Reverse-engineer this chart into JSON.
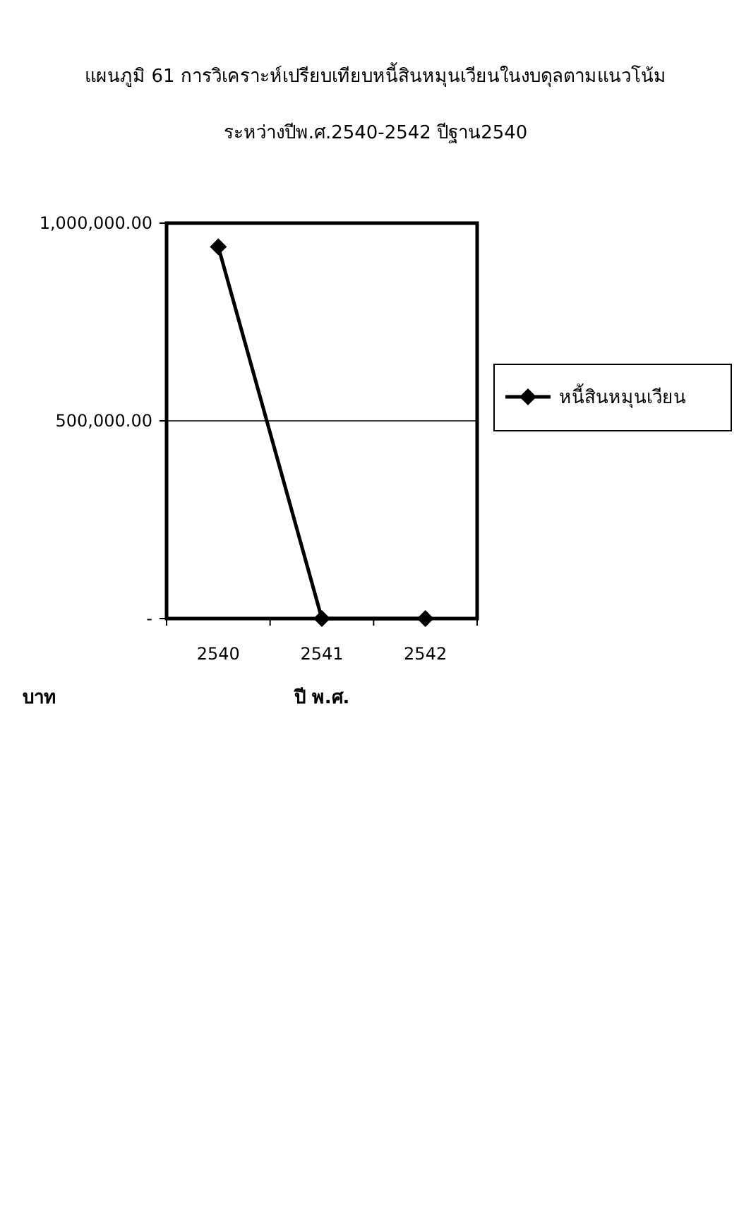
{
  "chart_data": {
    "type": "line",
    "title": "แผนภูมิ 61  การวิเคราะห์เปรียบเทียบหนี้สินหมุนเวียนในงบดุลตามแนวโน้ม",
    "subtitle": "ระหว่างปีพ.ศ.2540-2542 ปีฐาน2540",
    "xlabel": "ปี พ.ศ.",
    "ylabel": "บาท",
    "categories": [
      "2540",
      "2541",
      "2542"
    ],
    "series": [
      {
        "name": "หนี้สินหมุนเวียน",
        "color": "#000000",
        "values": [
          940000,
          0,
          0
        ]
      }
    ],
    "ylim": [
      0,
      1000000
    ],
    "yticks": [
      {
        "value": 0,
        "label": "-"
      },
      {
        "value": 500000,
        "label": "500,000.00"
      },
      {
        "value": 1000000,
        "label": "1,000,000.00"
      }
    ],
    "grid": "y",
    "legend": "right",
    "marker": "diamond",
    "line_style": "solid"
  }
}
